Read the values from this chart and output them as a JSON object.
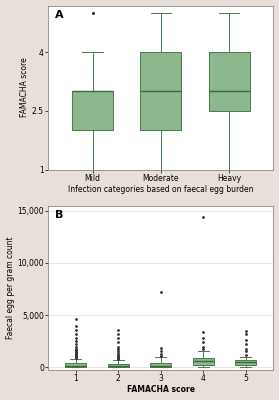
{
  "panel_A": {
    "title": "A",
    "categories": [
      "Mild",
      "Moderate",
      "Heavy"
    ],
    "xlabel": "Infection categories based on faecal egg burden",
    "ylabel": "FAMACHA score",
    "ylim": [
      1,
      5.2
    ],
    "yticks": [
      1,
      2.5,
      4
    ],
    "yticklabels": [
      "1",
      "2.5",
      "4"
    ],
    "box_data": {
      "Mild": {
        "q1": 2.0,
        "median": 3.0,
        "q3": 3.0,
        "whislo": 1.0,
        "whishi": 4.0,
        "fliers": [
          5.0
        ]
      },
      "Moderate": {
        "q1": 2.0,
        "median": 3.0,
        "q3": 4.0,
        "whislo": 1.0,
        "whishi": 5.0,
        "fliers": []
      },
      "Heavy": {
        "q1": 2.5,
        "median": 3.0,
        "q3": 4.0,
        "whislo": 1.0,
        "whishi": 5.0,
        "fliers": []
      }
    },
    "box_color": "#8db88e",
    "box_edge_color": "#4a7a4b",
    "median_color": "#3a6a3b",
    "whisker_color": "#4a7a4b",
    "flier_color": "#333333",
    "plot_bg": "#ffffff",
    "outer_bg": "#e8e0d8"
  },
  "panel_B": {
    "title": "B",
    "categories": [
      1,
      2,
      3,
      4,
      5
    ],
    "xlabel": "FAMACHA score",
    "ylabel": "Faecal egg per gram count",
    "ylim": [
      -200,
      15500
    ],
    "yticks": [
      0,
      5000,
      10000,
      15000
    ],
    "yticklabels": [
      "0",
      "5,000",
      "10,000",
      "15,000"
    ],
    "box_data": {
      "1": {
        "q1": 0,
        "median": 100,
        "q3": 400,
        "whislo": 0,
        "whishi": 800,
        "fliers": [
          900,
          1000,
          1100,
          1200,
          1300,
          1400,
          1500,
          1600,
          1700,
          1800,
          2000,
          2200,
          2500,
          2800,
          3200,
          3600,
          4000,
          4600
        ]
      },
      "2": {
        "q1": 0,
        "median": 100,
        "q3": 300,
        "whislo": 0,
        "whishi": 700,
        "fliers": [
          800,
          900,
          1000,
          1100,
          1200,
          1400,
          1600,
          1800,
          2000,
          2400,
          2800,
          3200,
          3600
        ]
      },
      "3": {
        "q1": 0,
        "median": 100,
        "q3": 400,
        "whislo": 0,
        "whishi": 1000,
        "fliers": [
          1100,
          1300,
          1600,
          1900,
          7200
        ]
      },
      "4": {
        "q1": 200,
        "median": 600,
        "q3": 900,
        "whislo": 0,
        "whishi": 1600,
        "fliers": [
          1800,
          2000,
          2400,
          2800,
          3400,
          14400
        ]
      },
      "5": {
        "q1": 200,
        "median": 500,
        "q3": 700,
        "whislo": 0,
        "whishi": 1000,
        "fliers": [
          1200,
          1600,
          1800,
          2200,
          2600,
          3200,
          3500
        ]
      }
    },
    "box_color": "#8db88e",
    "box_edge_color": "#4a7a4b",
    "median_color": "#3a6a3b",
    "whisker_color": "#4a7a4b",
    "flier_color": "#333333",
    "plot_bg": "#ffffff",
    "outer_bg": "#e8e0d8",
    "grid": true
  }
}
